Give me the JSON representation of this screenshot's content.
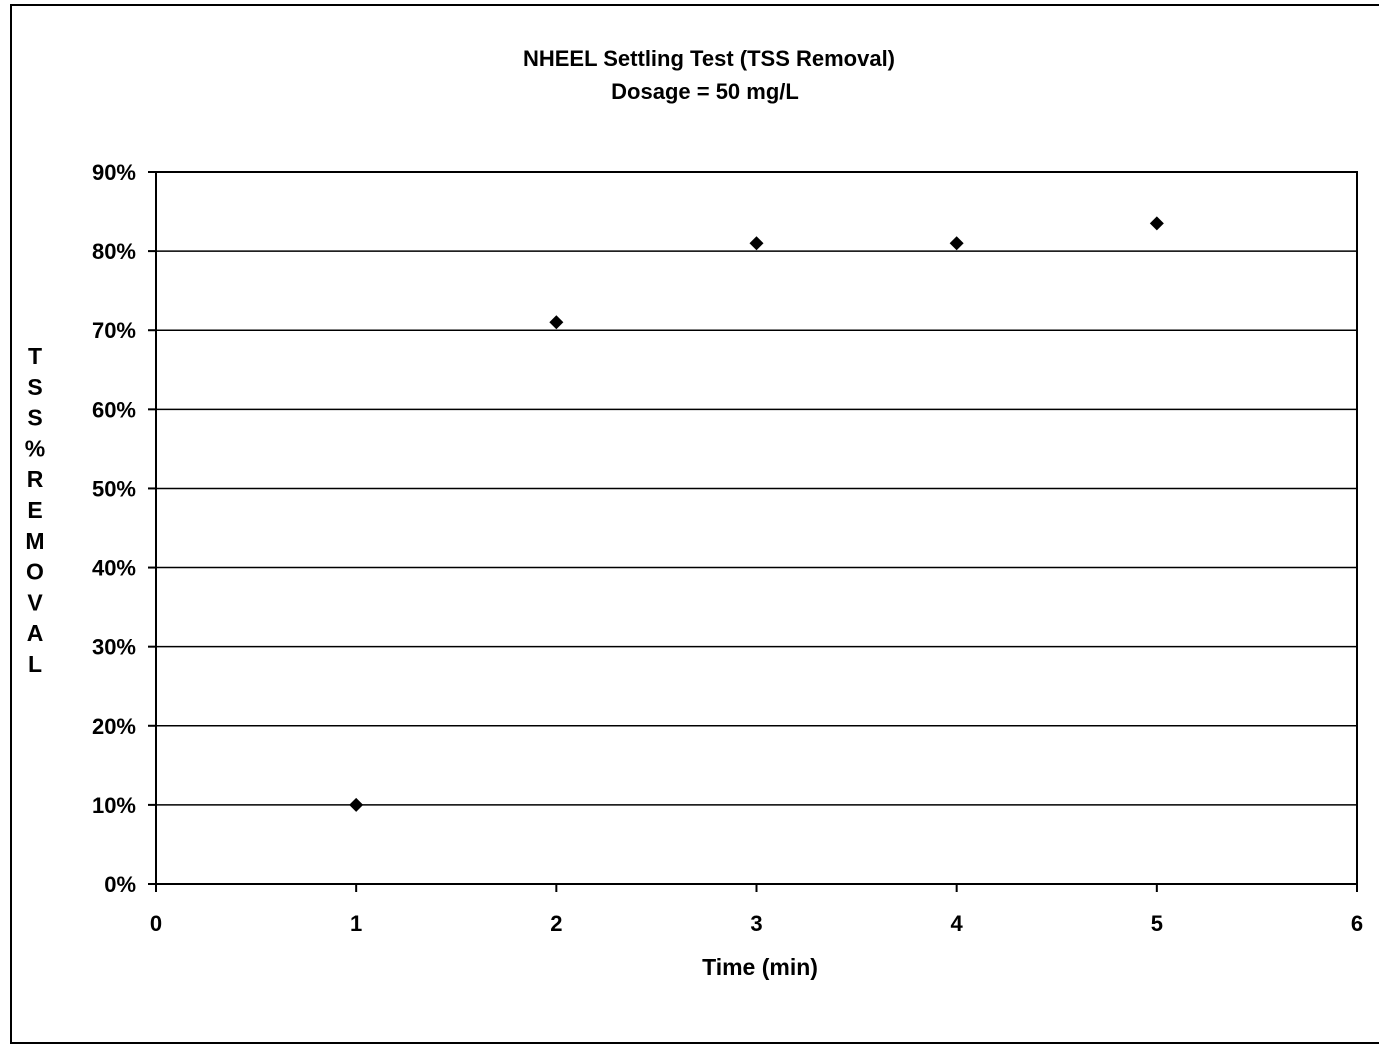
{
  "chart_data": {
    "type": "scatter",
    "title": "NHEEL Settling Test (TSS Removal)",
    "subtitle": "Dosage = 50 mg/L",
    "xlabel": "Time (min)",
    "ylabel": "TSS%REMOVAL",
    "xlim": [
      0,
      6
    ],
    "ylim": [
      0,
      0.9
    ],
    "x_ticks": [
      "0",
      "1",
      "2",
      "3",
      "4",
      "5",
      "6"
    ],
    "y_ticks": [
      "0%",
      "10%",
      "20%",
      "30%",
      "40%",
      "50%",
      "60%",
      "70%",
      "80%",
      "90%"
    ],
    "grid": "horizontal",
    "marker": "diamond",
    "color": "#000000",
    "series": [
      {
        "x": [
          1,
          2,
          3,
          4,
          5
        ],
        "y": [
          0.1,
          0.71,
          0.81,
          0.81,
          0.835
        ]
      }
    ]
  }
}
